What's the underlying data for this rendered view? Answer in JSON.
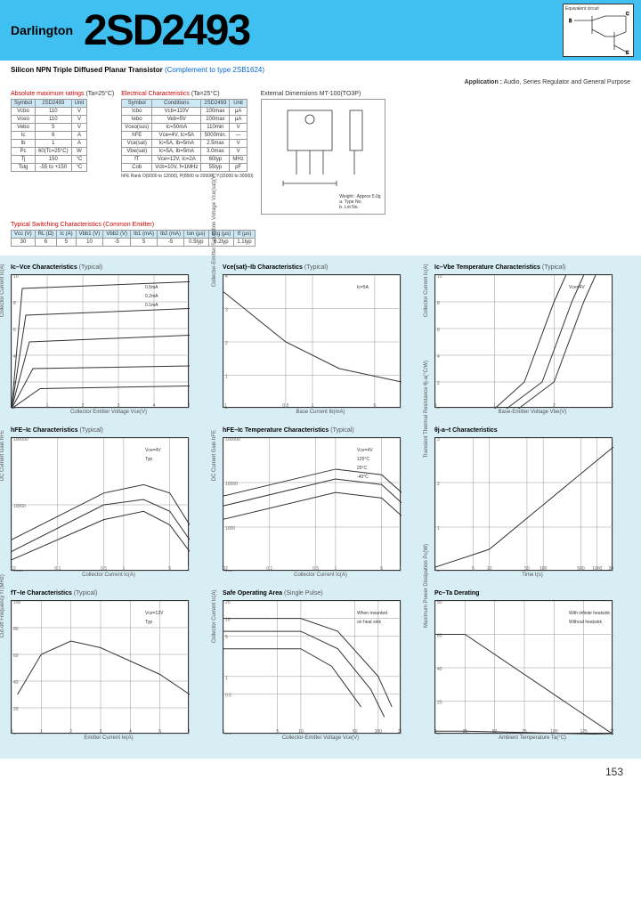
{
  "header": {
    "darlington": "Darlington",
    "partno": "2SD2493",
    "eq_title": "Equivalent circuit"
  },
  "subtitle": {
    "main": "Silicon NPN Triple Diffused Planar Transistor",
    "complement": "(Complement to type 2SB1624)"
  },
  "application": {
    "label": "Application :",
    "text": "Audio, Series Regulator and General Purpose"
  },
  "abs_max": {
    "title": "Absolute maximum ratings",
    "cond": "(Ta=25°C)",
    "headers": [
      "Symbol",
      "2SD2493",
      "Unit"
    ],
    "rows": [
      [
        "Vcbo",
        "110",
        "V"
      ],
      [
        "Vceo",
        "110",
        "V"
      ],
      [
        "Vebo",
        "5",
        "V"
      ],
      [
        "Ic",
        "6",
        "A"
      ],
      [
        "Ib",
        "1",
        "A"
      ],
      [
        "Pc",
        "60(Tc=25°C)",
        "W"
      ],
      [
        "Tj",
        "150",
        "°C"
      ],
      [
        "Tstg",
        "-55 to +150",
        "°C"
      ]
    ]
  },
  "elec": {
    "title": "Electrical Characteristics",
    "cond": "(Ta=25°C)",
    "headers": [
      "Symbol",
      "Conditions",
      "2SD2493",
      "Unit"
    ],
    "rows": [
      [
        "Icbo",
        "Vcb=110V",
        "100max",
        "µA"
      ],
      [
        "Iebo",
        "Veb=5V",
        "100max",
        "µA"
      ],
      [
        "Vceo(sus)",
        "Ic=50mA",
        "110min",
        "V"
      ],
      [
        "hFE",
        "Vce=4V, Ic=5A",
        "5000min.",
        "—"
      ],
      [
        "Vce(sat)",
        "Ic=5A, Ib=5mA",
        "2.5max",
        "V"
      ],
      [
        "Vbe(sat)",
        "Ic=5A, Ib=5mA",
        "3.0max",
        "V"
      ],
      [
        "fT",
        "Vce=12V, Ic=2A",
        "60typ",
        "MHz"
      ],
      [
        "Cob",
        "Vcb=10V, f=1MHz",
        "55typ",
        "pF"
      ]
    ],
    "rank": "hFE Rank   O(5000 to 12000), P(8500 to 20000), Y(15000 to 30000)"
  },
  "switching": {
    "title": "Typical Switching Characteristics (Common Emitter)",
    "headers": [
      "Vcc (V)",
      "RL (Ω)",
      "Ic (A)",
      "Vbb1 (V)",
      "Vbb2 (V)",
      "Ib1 (mA)",
      "Ib2 (mA)",
      "ton (µs)",
      "tstg (µs)",
      "tf (µs)"
    ],
    "rows": [
      [
        "30",
        "6",
        "5",
        "10",
        "-5",
        "5",
        "-5",
        "0.5typ",
        "6.2typ",
        "1.1typ"
      ]
    ]
  },
  "dimensions": {
    "title": "External Dimensions",
    "pkg": "MT-100(TO3P)",
    "weight": "Weight : Approx 5.0g",
    "note_a": "a. Type No.",
    "note_b": "b. Lot No."
  },
  "charts": [
    {
      "title": "Ic–Vce Characteristics",
      "typ": "(Typical)",
      "xlabel": "Collector Emitter Voltage Vce(V)",
      "ylabel": "Collector Current Ic(A)",
      "xlim": [
        0,
        5
      ],
      "ylim": [
        0,
        10
      ],
      "xticks": [
        0,
        1,
        2,
        3,
        4,
        5
      ],
      "yticks": [
        0,
        2,
        4,
        6,
        8,
        10
      ],
      "annotations": [
        "0.5mA",
        "0.2mA",
        "0.1mA"
      ],
      "curves": [
        [
          [
            0,
            0
          ],
          [
            0.3,
            9
          ],
          [
            5,
            9.5
          ]
        ],
        [
          [
            0,
            0
          ],
          [
            0.4,
            7
          ],
          [
            5,
            7.5
          ]
        ],
        [
          [
            0,
            0
          ],
          [
            0.5,
            5
          ],
          [
            5,
            5.5
          ]
        ],
        [
          [
            0,
            0
          ],
          [
            0.6,
            3
          ],
          [
            5,
            3.2
          ]
        ],
        [
          [
            0,
            0
          ],
          [
            0.8,
            1.5
          ],
          [
            5,
            1.7
          ]
        ]
      ]
    },
    {
      "title": "Vce(sat)–Ib Characteristics",
      "typ": "(Typical)",
      "xlabel": "Base Current Ib(mA)",
      "ylabel": "Collector-Emitter Saturation Voltage Vce(sat)(V)",
      "xlim": [
        0.1,
        10
      ],
      "ylim": [
        0,
        4
      ],
      "log_x": true,
      "xticks": [
        0.1,
        0.5,
        1,
        5,
        10
      ],
      "yticks": [
        0,
        1,
        2,
        3,
        4
      ],
      "annotations": [
        "Ic=5A"
      ],
      "curves": [
        [
          [
            0.1,
            3.5
          ],
          [
            0.5,
            2
          ],
          [
            2,
            1.2
          ],
          [
            10,
            0.8
          ]
        ]
      ]
    },
    {
      "title": "Ic–Vbe Temperature Characteristics",
      "typ": "(Typical)",
      "xlabel": "Base-Emitter Voltage Vbe(V)",
      "ylabel": "Collector Current Ic(A)",
      "xlim": [
        0,
        3
      ],
      "ylim": [
        0,
        10
      ],
      "xticks": [
        0,
        1,
        2,
        3
      ],
      "yticks": [
        0,
        2,
        4,
        6,
        8,
        10
      ],
      "annotations": [
        "Vce=4V"
      ],
      "curves": [
        [
          [
            1.0,
            0
          ],
          [
            1.5,
            2
          ],
          [
            2.0,
            8
          ],
          [
            2.2,
            10
          ]
        ],
        [
          [
            1.2,
            0
          ],
          [
            1.8,
            2
          ],
          [
            2.3,
            8
          ],
          [
            2.5,
            10
          ]
        ],
        [
          [
            1.4,
            0
          ],
          [
            2.0,
            2
          ],
          [
            2.5,
            8
          ],
          [
            2.7,
            10
          ]
        ]
      ]
    },
    {
      "title": "hFE–Ic Characteristics",
      "typ": "(Typical)",
      "xlabel": "Collector Current Ic(A)",
      "ylabel": "DC Current Gain hFE",
      "xlim": [
        0.02,
        10
      ],
      "ylim": [
        1000,
        100000
      ],
      "log_x": true,
      "log_y": true,
      "xticks": [
        0.02,
        0.1,
        0.5,
        1,
        5,
        10
      ],
      "yticks": [
        1000,
        10000,
        100000
      ],
      "annotations": [
        "Vce=4V",
        "Typ"
      ],
      "curves": [
        [
          [
            0.02,
            3000
          ],
          [
            0.5,
            15000
          ],
          [
            2,
            20000
          ],
          [
            5,
            15000
          ],
          [
            10,
            5000
          ]
        ],
        [
          [
            0.02,
            2000
          ],
          [
            0.5,
            10000
          ],
          [
            2,
            12000
          ],
          [
            5,
            8000
          ],
          [
            10,
            3000
          ]
        ],
        [
          [
            0.02,
            1500
          ],
          [
            0.5,
            6000
          ],
          [
            2,
            8000
          ],
          [
            5,
            5000
          ],
          [
            10,
            2000
          ]
        ]
      ]
    },
    {
      "title": "hFE–Ic Temperature Characteristics",
      "typ": "(Typical)",
      "xlabel": "Collector Current Ic(A)",
      "ylabel": "DC Current Gain hFE",
      "xlim": [
        0.02,
        10
      ],
      "ylim": [
        100,
        100000
      ],
      "log_x": true,
      "log_y": true,
      "xticks": [
        0.02,
        0.1,
        0.5,
        1,
        5,
        10
      ],
      "yticks": [
        100,
        1000,
        10000,
        100000
      ],
      "annotations": [
        "Vce=4V",
        "125°C",
        "25°C",
        "-40°C"
      ],
      "curves": [
        [
          [
            0.02,
            5000
          ],
          [
            1,
            20000
          ],
          [
            5,
            15000
          ],
          [
            10,
            6000
          ]
        ],
        [
          [
            0.02,
            3000
          ],
          [
            1,
            12000
          ],
          [
            5,
            9000
          ],
          [
            10,
            3500
          ]
        ],
        [
          [
            0.02,
            1500
          ],
          [
            1,
            6000
          ],
          [
            5,
            4500
          ],
          [
            10,
            1800
          ]
        ]
      ]
    },
    {
      "title": "θj-a–t Characteristics",
      "typ": "",
      "xlabel": "Time t(s)",
      "ylabel": "Transient Thermal Resistance θj-a(°C/W)",
      "xlim": [
        1,
        2000
      ],
      "ylim": [
        0,
        3
      ],
      "log_x": true,
      "xticks": [
        1,
        5,
        10,
        50,
        100,
        500,
        1000,
        2000
      ],
      "yticks": [
        0,
        1,
        2,
        3
      ],
      "curves": [
        [
          [
            1,
            0.1
          ],
          [
            10,
            0.5
          ],
          [
            100,
            1.5
          ],
          [
            1000,
            2.5
          ],
          [
            2000,
            2.8
          ]
        ]
      ]
    },
    {
      "title": "fT–Ie Characteristics",
      "typ": "(Typical)",
      "xlabel": "Emitter Current Ie(A)",
      "ylabel": "Cut-off Frequency fT(MHz)",
      "xlim": [
        0,
        6
      ],
      "ylim": [
        0,
        100
      ],
      "xticks": [
        0,
        1,
        2,
        3,
        4,
        5,
        6
      ],
      "yticks": [
        0,
        20,
        40,
        60,
        80,
        100
      ],
      "annotations": [
        "Vce=12V",
        "Typ"
      ],
      "curves": [
        [
          [
            0.2,
            30
          ],
          [
            1,
            60
          ],
          [
            2,
            70
          ],
          [
            3,
            65
          ],
          [
            5,
            45
          ],
          [
            6,
            30
          ]
        ]
      ]
    },
    {
      "title": "Safe Operating Area",
      "typ": "(Single Pulse)",
      "xlabel": "Collector-Emitter Voltage Vce(V)",
      "ylabel": "Collector Current Ic(A)",
      "xlim": [
        1,
        200
      ],
      "ylim": [
        0.1,
        20
      ],
      "log_x": true,
      "log_y": true,
      "xticks": [
        1,
        5,
        10,
        50,
        100,
        200
      ],
      "yticks": [
        0.1,
        0.5,
        1,
        5,
        10,
        20
      ],
      "annotations": [
        "When mounted",
        "on heat sink"
      ],
      "curves": [
        [
          [
            1,
            10
          ],
          [
            10,
            10
          ],
          [
            30,
            6
          ],
          [
            100,
            1
          ],
          [
            150,
            0.3
          ]
        ],
        [
          [
            1,
            6
          ],
          [
            10,
            6
          ],
          [
            30,
            3
          ],
          [
            80,
            0.6
          ],
          [
            120,
            0.2
          ]
        ],
        [
          [
            1,
            3
          ],
          [
            10,
            3
          ],
          [
            25,
            1.5
          ],
          [
            60,
            0.3
          ]
        ]
      ]
    },
    {
      "title": "Pc–Ta Derating",
      "typ": "",
      "xlabel": "Ambient Temperature Ta(°C)",
      "ylabel": "Maximum Power Dissipation Pc(W)",
      "xlim": [
        0,
        150
      ],
      "ylim": [
        0,
        80
      ],
      "xticks": [
        0,
        25,
        50,
        75,
        100,
        125,
        150
      ],
      "yticks": [
        0,
        20,
        40,
        60,
        80
      ],
      "annotations": [
        "With infinite heatsink",
        "Without heatsink"
      ],
      "curves": [
        [
          [
            0,
            60
          ],
          [
            25,
            60
          ],
          [
            150,
            0
          ]
        ],
        [
          [
            0,
            2
          ],
          [
            25,
            2
          ],
          [
            150,
            0
          ]
        ]
      ]
    }
  ],
  "page_no": "153",
  "colors": {
    "header_bg": "#3fc0f0",
    "charts_bg": "#d8eef5",
    "th_bg": "#cde8f5",
    "red": "#cc0000",
    "link": "#0066cc"
  }
}
